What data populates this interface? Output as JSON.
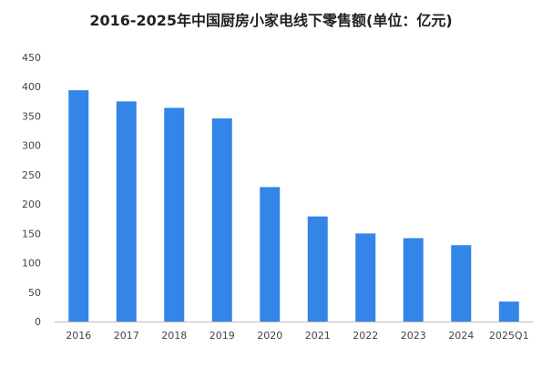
{
  "chart_data": {
    "type": "bar",
    "title": "2016-2025年中国厨房小家电线下零售额(单位：亿元)",
    "xlabel": "",
    "ylabel": "",
    "categories": [
      "2016",
      "2017",
      "2018",
      "2019",
      "2020",
      "2021",
      "2022",
      "2023",
      "2024",
      "2025Q1"
    ],
    "values": [
      394,
      375,
      364,
      346,
      229,
      179,
      150,
      142,
      130,
      34
    ],
    "ylim": [
      0,
      450
    ],
    "yticks": [
      0,
      50,
      100,
      150,
      200,
      250,
      300,
      350,
      400,
      450
    ],
    "grid": false,
    "legend": "none",
    "bar_color": "#3385E8",
    "axis_color": "#bbbbbb"
  }
}
